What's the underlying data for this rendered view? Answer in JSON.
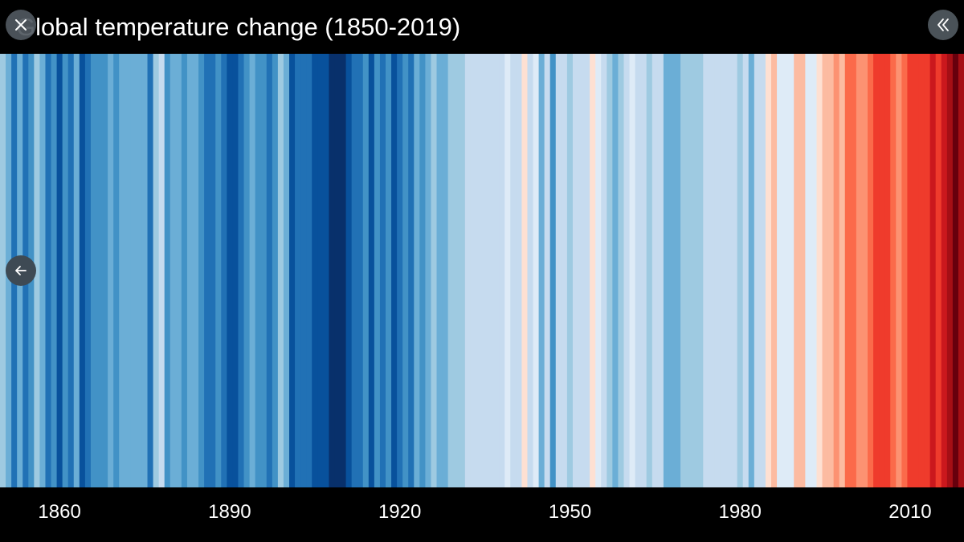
{
  "chart_data": {
    "type": "heatmap",
    "title": "Global temperature change (1850-2019)",
    "x_start": 1850,
    "x_end": 2019,
    "x_ticks": [
      "1860",
      "1890",
      "1920",
      "1950",
      "1980",
      "2010"
    ],
    "legend": "none",
    "grid": false,
    "scale": "blue (cooler) to red (warmer)",
    "color_levels": [
      "#08306b",
      "#08519c",
      "#2171b5",
      "#4292c6",
      "#6baed6",
      "#9ecae1",
      "#c6dbef",
      "#deebf7",
      "#fee0d2",
      "#fcbba1",
      "#fc9272",
      "#fb6a4a",
      "#ef3b2c",
      "#cb181d",
      "#a50f15",
      "#67000d"
    ],
    "annual_levels": [
      5,
      4,
      2,
      4,
      2,
      3,
      5,
      4,
      2,
      3,
      1,
      3,
      2,
      4,
      1,
      2,
      3,
      3,
      3,
      4,
      3,
      4,
      4,
      4,
      4,
      4,
      2,
      5,
      6,
      3,
      4,
      4,
      3,
      4,
      4,
      3,
      2,
      2,
      3,
      2,
      1,
      1,
      2,
      3,
      4,
      3,
      3,
      2,
      3,
      5,
      4,
      1,
      2,
      2,
      2,
      1,
      1,
      1,
      0,
      0,
      0,
      1,
      2,
      2,
      3,
      1,
      3,
      2,
      3,
      1,
      2,
      3,
      2,
      4,
      3,
      4,
      5,
      4,
      4,
      5,
      5,
      5,
      6,
      6,
      6,
      6,
      6,
      6,
      6,
      7,
      6,
      6,
      8,
      6,
      7,
      4,
      6,
      3,
      6,
      6,
      5,
      6,
      6,
      6,
      8,
      7,
      6,
      5,
      4,
      5,
      6,
      7,
      6,
      6,
      5,
      6,
      6,
      4,
      4,
      4,
      5,
      5,
      5,
      5,
      6,
      6,
      6,
      6,
      6,
      6,
      5,
      6,
      4,
      6,
      6,
      8,
      9,
      7,
      7,
      7,
      9,
      9,
      7,
      7,
      8,
      9,
      9,
      10,
      9,
      11,
      11,
      10,
      10,
      11,
      12,
      12,
      12,
      11,
      10,
      11,
      12,
      12,
      12,
      12,
      13,
      12,
      13,
      14,
      15,
      14
    ]
  },
  "controls": {
    "close_icon": "close-icon",
    "collapse_icon": "double-chevron-left-icon",
    "back_icon": "arrow-left-icon"
  }
}
